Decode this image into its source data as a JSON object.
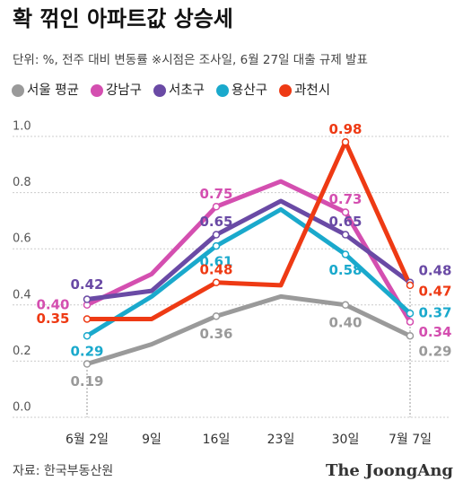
{
  "chart_data": {
    "type": "line",
    "title": "확 꺾인 아파트값 상승세",
    "subtitle": "단위: %, 전주 대비 변동률  ※시점은 조사일, 6월 27일 대출 규제 발표",
    "source": "자료: 한국부동산원",
    "brand": "The JoongAng",
    "categories": [
      "6월 2일",
      "9일",
      "16일",
      "23일",
      "30일",
      "7월 7일"
    ],
    "ylim": [
      0,
      1
    ],
    "yticks": [
      {
        "value": 0,
        "label": "0.0"
      },
      0.2,
      0.4,
      0.6,
      0.8,
      {
        "value": 1,
        "label": "1.0"
      }
    ],
    "grid": true,
    "series": [
      {
        "name": "서울 평균",
        "color": "#9a9a9a",
        "values": [
          0.19,
          0.26,
          0.36,
          0.43,
          0.4,
          0.29
        ],
        "value_labels": [
          "0.19",
          null,
          "0.36",
          null,
          "0.40",
          "0.29"
        ]
      },
      {
        "name": "강남구",
        "color": "#d44fb0",
        "values": [
          0.4,
          0.51,
          0.75,
          0.84,
          0.73,
          0.34
        ],
        "value_labels": [
          "0.40",
          null,
          "0.75",
          null,
          "0.73",
          "0.34"
        ]
      },
      {
        "name": "서초구",
        "color": "#6a4aa5",
        "values": [
          0.42,
          0.45,
          0.65,
          0.77,
          0.65,
          0.48
        ],
        "value_labels": [
          "0.42",
          null,
          "0.65",
          null,
          "0.65",
          "0.48"
        ]
      },
      {
        "name": "용산구",
        "color": "#1aa9cc",
        "values": [
          0.29,
          0.43,
          0.61,
          0.74,
          0.58,
          0.37
        ],
        "value_labels": [
          "0.29",
          null,
          "0.61",
          null,
          "0.58",
          "0.37"
        ]
      },
      {
        "name": "과천시",
        "color": "#ee3a14",
        "values": [
          0.35,
          0.35,
          0.48,
          0.47,
          0.98,
          0.47
        ],
        "value_labels": [
          "0.35",
          null,
          "0.48",
          null,
          "0.98",
          "0.47"
        ]
      }
    ]
  }
}
